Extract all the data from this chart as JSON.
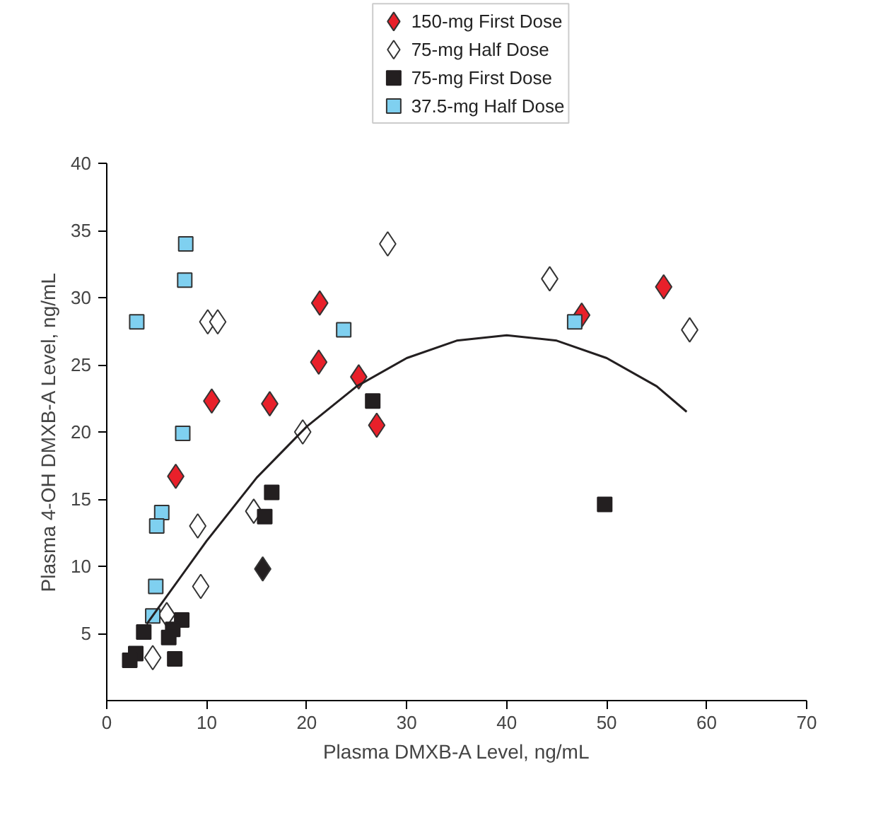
{
  "chart_data": {
    "type": "scatter",
    "xlabel": "Plasma DMXB-A Level, ng/mL",
    "ylabel": "Plasma 4-OH DMXB-A Level, ng/mL",
    "xlim": [
      0,
      70
    ],
    "ylim": [
      0,
      40
    ],
    "xticks": [
      0,
      10,
      20,
      30,
      40,
      50,
      60,
      70
    ],
    "yticks": [
      5,
      10,
      15,
      20,
      25,
      30,
      35,
      40
    ],
    "grid": false,
    "legend": "top",
    "series": [
      {
        "name": "150-mg First Dose",
        "color": "#e8202a",
        "marker": "diamond",
        "x": [
          10.5,
          16.3,
          21.3,
          21.2,
          25.2,
          27.0,
          6.9,
          55.7,
          47.5
        ],
        "values": [
          22.3,
          22.1,
          29.6,
          25.2,
          24.1,
          20.5,
          16.7,
          30.8,
          28.7
        ]
      },
      {
        "name": "75-mg Half Dose",
        "color": "#ffffff",
        "marker": "diamond",
        "x": [
          10.1,
          11.1,
          19.6,
          28.1,
          44.3,
          58.3,
          9.1,
          9.4,
          14.7,
          6.0,
          4.6
        ],
        "values": [
          28.2,
          28.2,
          20.0,
          34.0,
          31.4,
          27.6,
          13.0,
          8.5,
          14.1,
          6.4,
          3.2
        ]
      },
      {
        "name": "75-mg First Dose",
        "color": "#231f20",
        "marker": "square",
        "x": [
          26.6,
          49.8,
          16.5,
          15.8,
          7.5,
          6.6,
          6.2,
          3.7,
          2.9,
          2.3,
          6.8
        ],
        "values": [
          22.3,
          14.6,
          15.5,
          13.7,
          6.0,
          5.3,
          4.7,
          5.1,
          3.5,
          3.0,
          3.1
        ]
      },
      {
        "name": "37.5-mg Half Dose",
        "color": "#7fd0f0",
        "marker": "square",
        "x": [
          7.9,
          7.8,
          3.0,
          7.6,
          23.7,
          46.8,
          5.5,
          5.0,
          4.9,
          4.6
        ],
        "values": [
          34.0,
          31.3,
          28.2,
          19.9,
          27.6,
          28.2,
          14.0,
          13.0,
          8.5,
          6.3
        ]
      },
      {
        "color": "#231f20",
        "marker": "diamond",
        "x": [
          15.6
        ],
        "values": [
          9.8
        ]
      },
      {
        "type": "line",
        "color": "#231f20",
        "marker": "none",
        "line_style": "solid",
        "x": [
          4,
          10,
          15,
          20,
          25,
          30,
          35,
          40,
          45,
          50,
          55,
          58
        ],
        "values": [
          5.7,
          11.9,
          16.6,
          20.4,
          23.4,
          25.5,
          26.8,
          27.2,
          26.8,
          25.5,
          23.4,
          21.5
        ]
      }
    ]
  }
}
